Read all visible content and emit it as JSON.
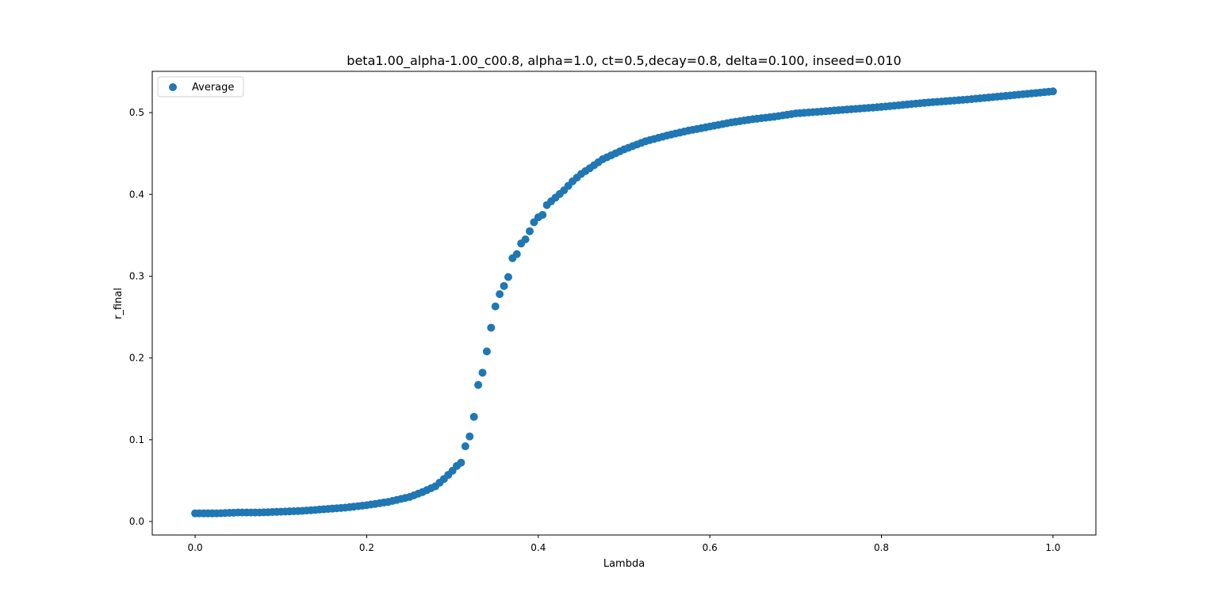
{
  "chart_data": {
    "type": "scatter",
    "title": "beta1.00_alpha-1.00_c00.8, alpha=1.0, ct=0.5,decay=0.8, delta=0.100, inseed=0.010",
    "xlabel": "Lambda",
    "ylabel": "r_final",
    "xlim": [
      -0.05,
      1.05
    ],
    "ylim": [
      -0.0165,
      0.5505
    ],
    "grid": false,
    "legend_position": "top-left",
    "x_ticks": [
      0.0,
      0.2,
      0.4,
      0.6,
      0.8,
      1.0
    ],
    "x_tick_labels": [
      "0.0",
      "0.2",
      "0.4",
      "0.6",
      "0.8",
      "1.0"
    ],
    "y_ticks": [
      0.0,
      0.1,
      0.2,
      0.3,
      0.4,
      0.5
    ],
    "y_tick_labels": [
      "0.0",
      "0.1",
      "0.2",
      "0.3",
      "0.4",
      "0.5"
    ],
    "series": [
      {
        "name": "Average",
        "color": "#1f77b4",
        "x": [
          0.0,
          0.025,
          0.05,
          0.075,
          0.1,
          0.125,
          0.15,
          0.175,
          0.2,
          0.225,
          0.25,
          0.265,
          0.28,
          0.29,
          0.3,
          0.305,
          0.31,
          0.315,
          0.32,
          0.325,
          0.33,
          0.335,
          0.34,
          0.345,
          0.35,
          0.355,
          0.36,
          0.365,
          0.37,
          0.375,
          0.38,
          0.385,
          0.39,
          0.395,
          0.4,
          0.405,
          0.41,
          0.42,
          0.43,
          0.44,
          0.45,
          0.46,
          0.475,
          0.5,
          0.525,
          0.55,
          0.575,
          0.6,
          0.625,
          0.65,
          0.675,
          0.7,
          0.75,
          0.8,
          0.85,
          0.9,
          0.95,
          0.98,
          1.0
        ],
        "values": [
          0.01,
          0.01,
          0.011,
          0.011,
          0.012,
          0.013,
          0.015,
          0.017,
          0.02,
          0.024,
          0.03,
          0.036,
          0.043,
          0.052,
          0.062,
          0.068,
          0.072,
          0.092,
          0.104,
          0.128,
          0.167,
          0.182,
          0.208,
          0.237,
          0.263,
          0.278,
          0.288,
          0.299,
          0.322,
          0.327,
          0.34,
          0.345,
          0.355,
          0.366,
          0.372,
          0.375,
          0.387,
          0.396,
          0.405,
          0.416,
          0.425,
          0.432,
          0.443,
          0.455,
          0.465,
          0.472,
          0.478,
          0.483,
          0.488,
          0.492,
          0.495,
          0.499,
          0.503,
          0.507,
          0.512,
          0.516,
          0.521,
          0.524,
          0.526
        ]
      }
    ]
  }
}
